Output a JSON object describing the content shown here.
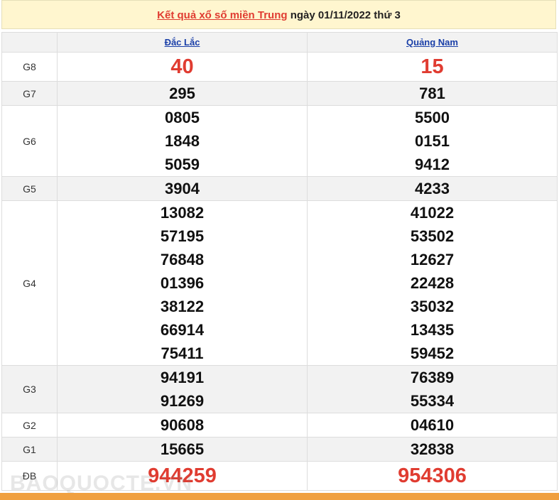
{
  "header": {
    "link": "Kết quả xổ số miền Trung",
    "date": "ngày 01/11/2022 thứ 3"
  },
  "table": {
    "provinces": [
      "Đắc Lắc",
      "Quảng Nam"
    ],
    "rows": [
      {
        "prize": "G8",
        "values": [
          [
            "40"
          ],
          [
            "15"
          ]
        ]
      },
      {
        "prize": "G7",
        "values": [
          [
            "295"
          ],
          [
            "781"
          ]
        ]
      },
      {
        "prize": "G6",
        "values": [
          [
            "0805",
            "1848",
            "5059"
          ],
          [
            "5500",
            "0151",
            "9412"
          ]
        ]
      },
      {
        "prize": "G5",
        "values": [
          [
            "3904"
          ],
          [
            "4233"
          ]
        ]
      },
      {
        "prize": "G4",
        "values": [
          [
            "13082",
            "57195",
            "76848",
            "01396",
            "38122",
            "66914",
            "75411"
          ],
          [
            "41022",
            "53502",
            "12627",
            "22428",
            "35032",
            "13435",
            "59452"
          ]
        ]
      },
      {
        "prize": "G3",
        "values": [
          [
            "94191",
            "91269"
          ],
          [
            "76389",
            "55334"
          ]
        ]
      },
      {
        "prize": "G2",
        "values": [
          [
            "90608"
          ],
          [
            "04610"
          ]
        ]
      },
      {
        "prize": "G1",
        "values": [
          [
            "15665"
          ],
          [
            "32838"
          ]
        ]
      },
      {
        "prize": "ĐB",
        "values": [
          [
            "944259"
          ],
          [
            "954306"
          ]
        ]
      }
    ]
  },
  "watermark": "BAOQUOCTE.VN"
}
